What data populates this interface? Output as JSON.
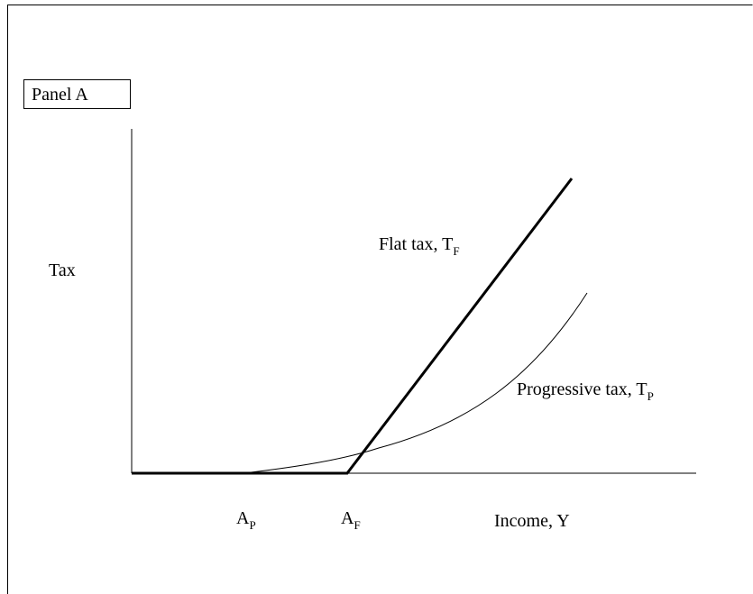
{
  "panel_label": "Panel A",
  "y_axis_label": "Tax",
  "x_axis_label": "Income, Y",
  "curves": [
    {
      "label": "Flat tax, T",
      "subscript": "F"
    },
    {
      "label": "Progressive tax, T",
      "subscript": "P"
    }
  ],
  "points": [
    {
      "label": "A",
      "subscript": "P"
    },
    {
      "label": "A",
      "subscript": "F"
    }
  ]
}
